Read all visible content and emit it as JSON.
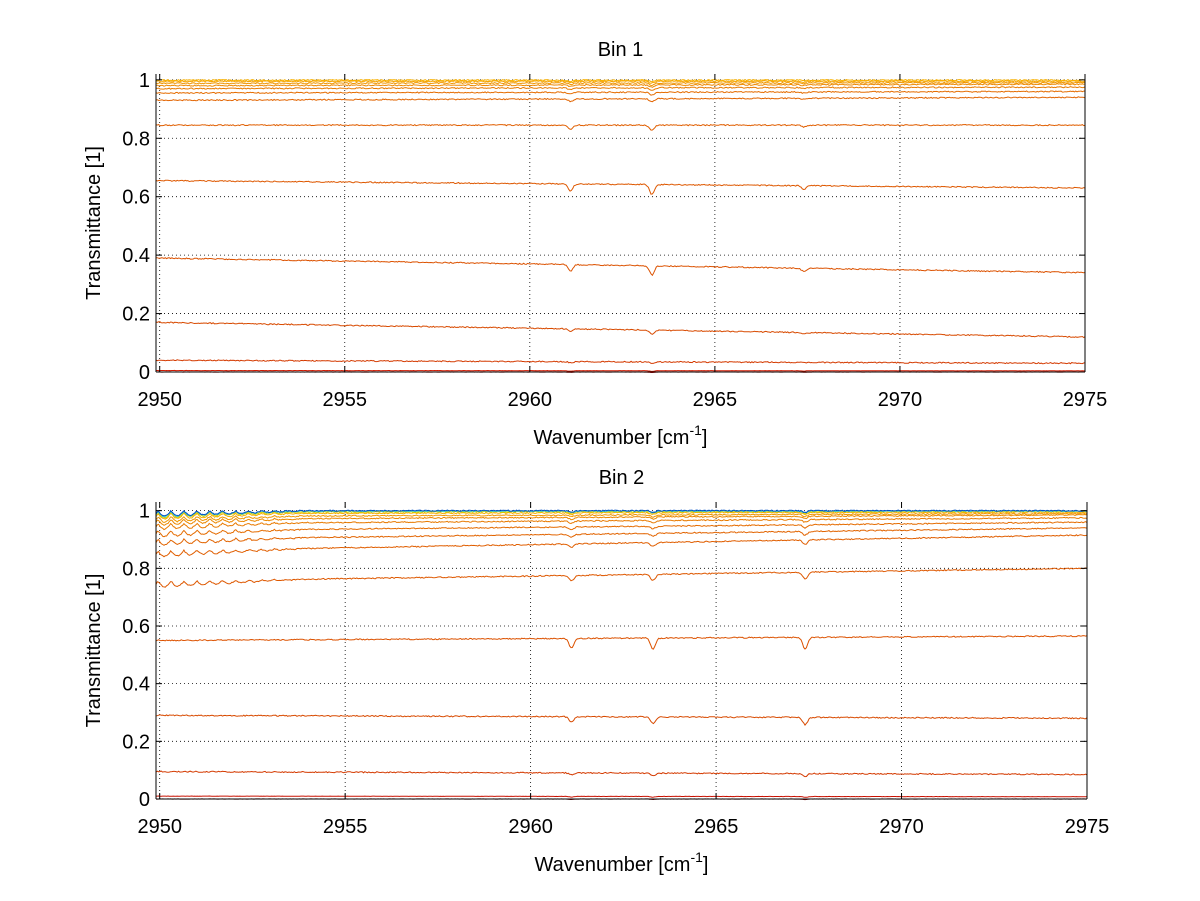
{
  "chart_data": [
    {
      "type": "line",
      "title": "Bin 1",
      "xlabel": "Wavenumber [cm",
      "xlabel_sup": "-1",
      "xlabel_suffix": "]",
      "ylabel": "Transmittance [1]",
      "xlim": [
        2949.9,
        2975
      ],
      "ylim": [
        0,
        1.02
      ],
      "xticks": [
        2950,
        2955,
        2960,
        2965,
        2970,
        2975
      ],
      "xtick_labels": [
        "2950",
        "2955",
        "2960",
        "2965",
        "2970",
        "2975"
      ],
      "yticks": [
        0,
        0.2,
        0.4,
        0.6,
        0.8,
        1
      ],
      "ytick_labels": [
        "0",
        "0.2",
        "0.4",
        "0.6",
        "0.8",
        "1"
      ],
      "grid": true,
      "absorption_lines": [
        {
          "x": 2961.1,
          "rel_depth": 0.7
        },
        {
          "x": 2963.3,
          "rel_depth": 1.0
        },
        {
          "x": 2967.4,
          "rel_depth": 0.35
        }
      ],
      "series": [
        {
          "start": 0.0,
          "end": 0.0,
          "color": "#cc0000"
        },
        {
          "start": 0.005,
          "end": 0.004,
          "color": "#d01800"
        },
        {
          "start": 0.04,
          "end": 0.03,
          "color": "#d43a00"
        },
        {
          "start": 0.17,
          "end": 0.12,
          "color": "#d84a00"
        },
        {
          "start": 0.39,
          "end": 0.34,
          "color": "#dc5200"
        },
        {
          "start": 0.655,
          "end": 0.63,
          "color": "#de5800"
        },
        {
          "start": 0.845,
          "end": 0.845,
          "color": "#e05e00"
        },
        {
          "start": 0.93,
          "end": 0.94,
          "color": "#e26400"
        },
        {
          "start": 0.955,
          "end": 0.96,
          "color": "#e56c00"
        },
        {
          "start": 0.97,
          "end": 0.975,
          "color": "#e87a00"
        },
        {
          "start": 0.98,
          "end": 0.985,
          "color": "#ec8800"
        },
        {
          "start": 0.988,
          "end": 0.99,
          "color": "#f09600"
        },
        {
          "start": 0.995,
          "end": 0.995,
          "color": "#f5a500"
        },
        {
          "start": 0.999,
          "end": 0.999,
          "color": "#f8b000"
        }
      ]
    },
    {
      "type": "line",
      "title": "Bin 2",
      "xlabel": "Wavenumber [cm",
      "xlabel_sup": "-1",
      "xlabel_suffix": "]",
      "ylabel": "Transmittance [1]",
      "xlim": [
        2949.9,
        2975
      ],
      "ylim": [
        0,
        1.03
      ],
      "xticks": [
        2950,
        2955,
        2960,
        2965,
        2970,
        2975
      ],
      "xtick_labels": [
        "2950",
        "2955",
        "2960",
        "2965",
        "2970",
        "2975"
      ],
      "yticks": [
        0,
        0.2,
        0.4,
        0.6,
        0.8,
        1
      ],
      "ytick_labels": [
        "0",
        "0.2",
        "0.4",
        "0.6",
        "0.8",
        "1"
      ],
      "grid": true,
      "absorption_lines": [
        {
          "x": 2961.1,
          "rel_depth": 0.8
        },
        {
          "x": 2963.3,
          "rel_depth": 0.9
        },
        {
          "x": 2967.4,
          "rel_depth": 1.0
        }
      ],
      "series": [
        {
          "start": 0.0,
          "end": 0.0,
          "color": "#8b0000"
        },
        {
          "start": 0.01,
          "end": 0.008,
          "color": "#c81000"
        },
        {
          "start": 0.095,
          "end": 0.085,
          "color": "#d43a00"
        },
        {
          "start": 0.29,
          "end": 0.28,
          "color": "#d84a00"
        },
        {
          "start": 0.55,
          "end": 0.565,
          "color": "#dc5200"
        },
        {
          "start": 0.755,
          "end": 0.8,
          "color": "#de5800"
        },
        {
          "start": 0.86,
          "end": 0.915,
          "color": "#e05e00"
        },
        {
          "start": 0.9,
          "end": 0.94,
          "color": "#e26400"
        },
        {
          "start": 0.93,
          "end": 0.96,
          "color": "#e56c00"
        },
        {
          "start": 0.955,
          "end": 0.975,
          "color": "#e87a00"
        },
        {
          "start": 0.97,
          "end": 0.985,
          "color": "#ec8800"
        },
        {
          "start": 0.98,
          "end": 0.99,
          "color": "#f09600"
        },
        {
          "start": 0.99,
          "end": 0.995,
          "color": "#f5b000"
        },
        {
          "start": 0.995,
          "end": 0.998,
          "color": "#d8d000"
        },
        {
          "start": 0.998,
          "end": 0.999,
          "color": "#40c8c0"
        },
        {
          "start": 1.0,
          "end": 1.0,
          "color": "#0050c8"
        }
      ]
    }
  ]
}
